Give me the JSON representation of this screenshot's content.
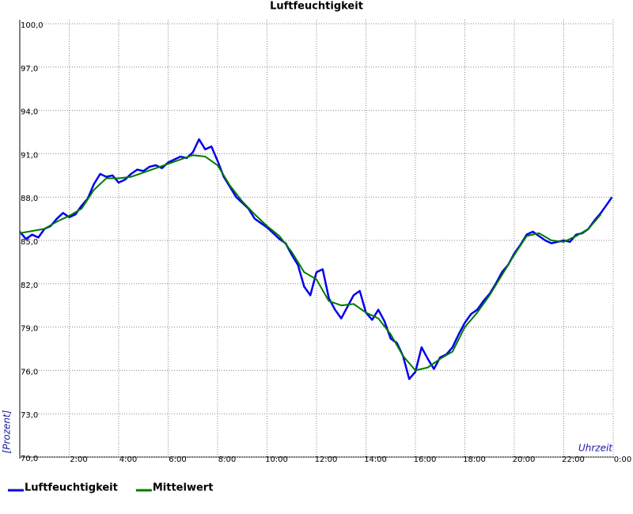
{
  "chart_data": {
    "type": "line",
    "title": "Luftfeuchtigkeit",
    "y_label": "[Prozent]",
    "x_label": "Uhrzeit",
    "xlim": [
      0,
      24
    ],
    "xticks": [
      {
        "value": 2,
        "label": "2:00"
      },
      {
        "value": 4,
        "label": "4:00"
      },
      {
        "value": 6,
        "label": "6:00"
      },
      {
        "value": 8,
        "label": "8:00"
      },
      {
        "value": 10,
        "label": "10:00"
      },
      {
        "value": 12,
        "label": "12:00"
      },
      {
        "value": 14,
        "label": "14:00"
      },
      {
        "value": 16,
        "label": "16:00"
      },
      {
        "value": 18,
        "label": "18:00"
      },
      {
        "value": 20,
        "label": "20:00"
      },
      {
        "value": 22,
        "label": "22:00"
      },
      {
        "value": 24,
        "label": "0:00"
      }
    ],
    "ylim": [
      70,
      100
    ],
    "yticks": [
      {
        "value": 70,
        "label": "70,0"
      },
      {
        "value": 73,
        "label": "73,0"
      },
      {
        "value": 76,
        "label": "76,0"
      },
      {
        "value": 79,
        "label": "79,0"
      },
      {
        "value": 82,
        "label": "82,0"
      },
      {
        "value": 85,
        "label": "85,0"
      },
      {
        "value": 88,
        "label": "88,0"
      },
      {
        "value": 91,
        "label": "91,0"
      },
      {
        "value": 94,
        "label": "94,0"
      },
      {
        "value": 97,
        "label": "97,0"
      },
      {
        "value": 100,
        "label": "100,0"
      }
    ],
    "grid": true,
    "series": [
      {
        "name": "Luftfeuchtigkeit",
        "color": "#0000ee",
        "width": 2.5,
        "x": [
          0,
          0.25,
          0.5,
          0.75,
          1,
          1.25,
          1.5,
          1.75,
          2,
          2.25,
          2.5,
          2.75,
          3,
          3.25,
          3.5,
          3.75,
          4,
          4.25,
          4.5,
          4.75,
          5,
          5.25,
          5.5,
          5.75,
          6,
          6.25,
          6.5,
          6.75,
          7,
          7.25,
          7.5,
          7.75,
          8,
          8.25,
          8.5,
          8.75,
          9,
          9.25,
          9.5,
          9.75,
          10,
          10.25,
          10.5,
          10.75,
          11,
          11.25,
          11.5,
          11.75,
          12,
          12.25,
          12.5,
          12.75,
          13,
          13.25,
          13.5,
          13.75,
          14,
          14.25,
          14.5,
          14.75,
          15,
          15.25,
          15.5,
          15.75,
          16,
          16.25,
          16.5,
          16.75,
          17,
          17.25,
          17.5,
          17.75,
          18,
          18.25,
          18.5,
          18.75,
          19,
          19.25,
          19.5,
          19.75,
          20,
          20.25,
          20.5,
          20.75,
          21,
          21.25,
          21.5,
          21.75,
          22,
          22.25,
          22.5,
          22.75,
          23,
          23.25,
          23.5,
          23.75,
          23.95
        ],
        "values": [
          85.6,
          85.1,
          85.4,
          85.2,
          85.8,
          86.0,
          86.5,
          86.9,
          86.6,
          86.8,
          87.4,
          87.9,
          88.9,
          89.6,
          89.4,
          89.5,
          89.0,
          89.2,
          89.6,
          89.9,
          89.8,
          90.1,
          90.2,
          90.0,
          90.4,
          90.6,
          90.8,
          90.7,
          91.1,
          92.0,
          91.3,
          91.5,
          90.5,
          89.4,
          88.7,
          88.0,
          87.6,
          87.2,
          86.5,
          86.2,
          85.9,
          85.5,
          85.1,
          84.8,
          84.0,
          83.3,
          81.8,
          81.2,
          82.8,
          83.0,
          81.0,
          80.2,
          79.6,
          80.4,
          81.2,
          81.5,
          80.0,
          79.5,
          80.2,
          79.4,
          78.2,
          77.9,
          77.0,
          75.4,
          75.9,
          77.6,
          76.8,
          76.1,
          76.9,
          77.1,
          77.6,
          78.5,
          79.3,
          79.9,
          80.2,
          80.8,
          81.3,
          82.0,
          82.8,
          83.3,
          84.1,
          84.7,
          85.4,
          85.6,
          85.3,
          85.0,
          84.8,
          84.9,
          85.0,
          84.9,
          85.4,
          85.5,
          85.8,
          86.4,
          86.9,
          87.5,
          88.0
        ]
      },
      {
        "name": "Mittelwert",
        "color": "#007a00",
        "width": 2,
        "x": [
          0,
          1,
          1.5,
          2,
          2.5,
          3,
          3.5,
          4,
          4.5,
          5,
          5.5,
          6,
          6.5,
          7,
          7.5,
          8,
          8.5,
          9,
          9.5,
          10,
          10.5,
          11,
          11.5,
          12,
          12.5,
          13,
          13.5,
          14,
          14.5,
          15,
          15.5,
          16,
          16.5,
          17,
          17.5,
          18,
          18.5,
          19,
          19.5,
          20,
          20.5,
          21,
          21.5,
          22,
          22.5,
          23,
          23.5
        ],
        "values": [
          85.5,
          85.8,
          86.3,
          86.7,
          87.2,
          88.5,
          89.3,
          89.3,
          89.4,
          89.7,
          90.0,
          90.3,
          90.6,
          90.9,
          90.8,
          90.2,
          88.8,
          87.7,
          86.8,
          86.0,
          85.3,
          84.2,
          82.8,
          82.3,
          80.8,
          80.5,
          80.6,
          80.0,
          79.6,
          78.5,
          77.0,
          76.0,
          76.2,
          76.8,
          77.3,
          79.0,
          80.0,
          81.2,
          82.6,
          84.0,
          85.3,
          85.5,
          85.0,
          84.9,
          85.3,
          85.8,
          86.8
        ]
      }
    ]
  }
}
